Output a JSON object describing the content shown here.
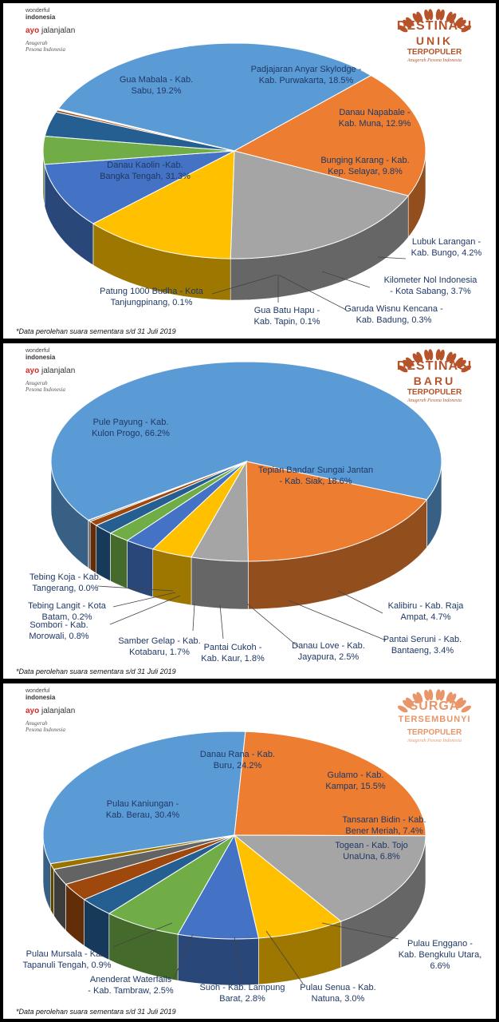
{
  "footnote": "*Data perolehan suara sementara s/d 31 Juli 2019",
  "logos": {
    "wonderful": "wonderful",
    "indonesia": "indonesia",
    "ayo": "ayo",
    "jalan": "jalanjalan",
    "anugerah": "Anugerah",
    "pesona": "Pesona Indonesia"
  },
  "badges": [
    {
      "line1": "DESTINASI",
      "line2": "UNIK",
      "line3": "TERPOPULER",
      "line4": "Anugerah Pesona Indonesia",
      "color": "#b6532a"
    },
    {
      "line1": "DESTINASI",
      "line2": "BARU",
      "line3": "TERPOPULER",
      "line4": "Anugerah Pesona Indonesia",
      "color": "#b6532a"
    },
    {
      "line1": "SURGA",
      "line2": "TERSEMBUNYI",
      "line3": "TERPOPULER",
      "line4": "Anugerah Pesona Indonesia",
      "color": "#e9956a"
    }
  ],
  "chart_data": [
    {
      "type": "pie",
      "slices": [
        {
          "label": "Danau Kaolin -Kab.\nBangka Tengah, 31.3%",
          "value": 31.3,
          "color": "#5b9bd5"
        },
        {
          "label": "Gua Mabala - Kab.\nSabu, 19.2%",
          "value": 19.2,
          "color": "#ed7d31"
        },
        {
          "label": "Padjajaran Anyar Skylodge -\nKab. Purwakarta, 18.5%",
          "value": 18.5,
          "color": "#a5a5a5"
        },
        {
          "label": "Danau Napabale -\nKab. Muna, 12.9%",
          "value": 12.9,
          "color": "#ffc000"
        },
        {
          "label": "Bunging Karang - Kab.\nKep. Selayar, 9.8%",
          "value": 9.8,
          "color": "#4472c4"
        },
        {
          "label": "Lubuk Larangan -\nKab. Bungo, 4.2%",
          "value": 4.2,
          "color": "#70ad47"
        },
        {
          "label": "Kilometer Nol Indonesia\n- Kota Sabang, 3.7%",
          "value": 3.7,
          "color": "#255e91"
        },
        {
          "label": "Garuda Wisnu Kencana -\nKab. Badung, 0.3%",
          "value": 0.3,
          "color": "#9e480e"
        },
        {
          "label": "Gua Batu Hapu -\nKab. Tapin, 0.1%",
          "value": 0.1,
          "color": "#636363"
        },
        {
          "label": "Patung 1000 Budha - Kota\nTanjungpinang, 0.1%",
          "value": 0.1,
          "color": "#997300"
        }
      ]
    },
    {
      "type": "pie",
      "slices": [
        {
          "label": "Pule Payung - Kab.\nKulon Progo, 66.2%",
          "value": 66.2,
          "color": "#5b9bd5"
        },
        {
          "label": "Tepian Bandar Sungai Jantan\n- Kab. Siak, 18.6%",
          "value": 18.6,
          "color": "#ed7d31"
        },
        {
          "label": "Kalibiru - Kab. Raja\nAmpat, 4.7%",
          "value": 4.7,
          "color": "#a5a5a5"
        },
        {
          "label": "Pantai Seruni - Kab.\nBantaeng, 3.4%",
          "value": 3.4,
          "color": "#ffc000"
        },
        {
          "label": "Danau Love - Kab.\nJayapura, 2.5%",
          "value": 2.5,
          "color": "#4472c4"
        },
        {
          "label": "Pantai Cukoh -\nKab. Kaur, 1.8%",
          "value": 1.8,
          "color": "#70ad47"
        },
        {
          "label": "Samber Gelap - Kab.\nKotabaru, 1.7%",
          "value": 1.7,
          "color": "#255e91"
        },
        {
          "label": "Sombori - Kab.\nMorowali, 0.8%",
          "value": 0.8,
          "color": "#9e480e"
        },
        {
          "label": "Tebing Langit - Kota\nBatam, 0.2%",
          "value": 0.2,
          "color": "#636363"
        },
        {
          "label": "Tebing Koja - Kab.\nTangerang, 0.0%",
          "value": 0.05,
          "color": "#997300"
        }
      ]
    },
    {
      "type": "pie",
      "slices": [
        {
          "label": "Pulau Kaniungan -\nKab. Berau, 30.4%",
          "value": 30.4,
          "color": "#5b9bd5"
        },
        {
          "label": "Danau Rana - Kab.\nBuru, 24.2%",
          "value": 24.2,
          "color": "#ed7d31"
        },
        {
          "label": "Gulamo - Kab.\nKampar, 15.5%",
          "value": 15.5,
          "color": "#a5a5a5"
        },
        {
          "label": "Tansaran Bidin - Kab.\nBener Meriah, 7.4%",
          "value": 7.4,
          "color": "#ffc000"
        },
        {
          "label": "Togean - Kab. Tojo\nUnaUna, 6.8%",
          "value": 6.8,
          "color": "#4472c4"
        },
        {
          "label": "Pulau Enggano -\nKab. Bengkulu Utara,\n6.6%",
          "value": 6.6,
          "color": "#70ad47"
        },
        {
          "label": "Pulau Senua - Kab.\nNatuna, 3.0%",
          "value": 3.0,
          "color": "#255e91"
        },
        {
          "label": "Suoh - Kab. Lampung\nBarat, 2.8%",
          "value": 2.8,
          "color": "#9e480e"
        },
        {
          "label": "Anenderat Waterfalls\n- Kab. Tambraw, 2.5%",
          "value": 2.5,
          "color": "#636363"
        },
        {
          "label": "Pulau Mursala - Kab.\nTapanuli Tengah, 0.9%",
          "value": 0.9,
          "color": "#997300"
        }
      ]
    }
  ]
}
